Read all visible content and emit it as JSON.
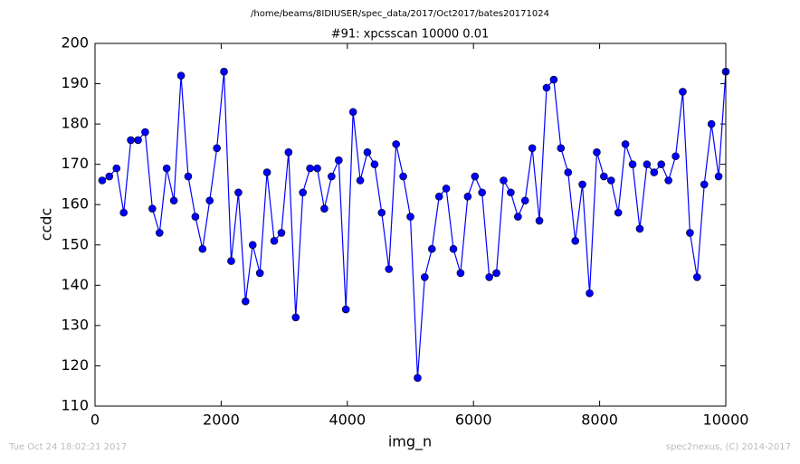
{
  "chart_data": {
    "type": "line",
    "suptitle": "/home/beams/8IDIUSER/spec_data/2017/Oct2017/bates20171024",
    "title": "#91: xpcsscan 10000 0.01",
    "xlabel": "img_n",
    "ylabel": "ccdc",
    "footer_left": "Tue Oct 24 18:02:21 2017",
    "footer_right": "spec2nexus, (C) 2014-2017",
    "x": [
      114,
      227,
      341,
      455,
      568,
      682,
      795,
      909,
      1023,
      1136,
      1250,
      1364,
      1477,
      1591,
      1705,
      1818,
      1932,
      2045,
      2159,
      2273,
      2386,
      2500,
      2614,
      2727,
      2841,
      2955,
      3068,
      3182,
      3295,
      3409,
      3523,
      3636,
      3750,
      3864,
      3977,
      4091,
      4205,
      4318,
      4432,
      4545,
      4659,
      4773,
      4886,
      5000,
      5114,
      5227,
      5341,
      5455,
      5568,
      5682,
      5795,
      5909,
      6023,
      6136,
      6250,
      6364,
      6477,
      6591,
      6705,
      6818,
      6932,
      7045,
      7159,
      7273,
      7386,
      7500,
      7614,
      7727,
      7841,
      7955,
      8068,
      8182,
      8295,
      8409,
      8523,
      8636,
      8750,
      8864,
      8977,
      9091,
      9205,
      9318,
      9432,
      9545,
      9659,
      9773,
      9886,
      10000
    ],
    "series": [
      {
        "name": "ccdc",
        "color": "#0000ff",
        "values": [
          166,
          167,
          169,
          158,
          176,
          176,
          178,
          159,
          153,
          169,
          161,
          192,
          167,
          157,
          149,
          161,
          174,
          193,
          146,
          163,
          136,
          150,
          143,
          168,
          151,
          153,
          173,
          132,
          163,
          169,
          169,
          159,
          167,
          171,
          134,
          183,
          166,
          173,
          170,
          158,
          144,
          175,
          167,
          157,
          117,
          142,
          149,
          162,
          164,
          149,
          143,
          162,
          167,
          163,
          142,
          143,
          166,
          163,
          157,
          161,
          174,
          156,
          189,
          191,
          174,
          168,
          151,
          165,
          138,
          173,
          167,
          166,
          158,
          175,
          170,
          154,
          170,
          168,
          170,
          166,
          172,
          188,
          153,
          142,
          165,
          180,
          167,
          193
        ]
      }
    ],
    "xlim": [
      0,
      10000
    ],
    "xticks": [
      0,
      2000,
      4000,
      6000,
      8000,
      10000
    ],
    "ylim": [
      110,
      200
    ],
    "yticks": [
      110,
      120,
      130,
      140,
      150,
      160,
      170,
      180,
      190,
      200
    ],
    "grid": false
  }
}
